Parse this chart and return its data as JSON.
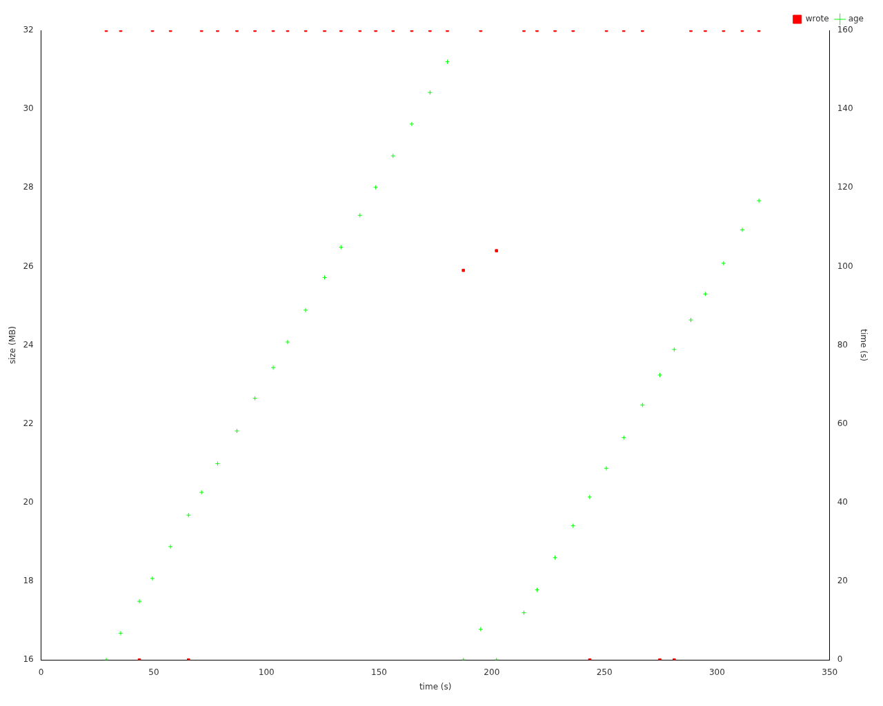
{
  "chart_data": {
    "type": "scatter",
    "xlabel": "time (s)",
    "ylabel": "size (MB)",
    "y2label": "time (s)",
    "xlim": [
      0,
      350
    ],
    "xticks": [
      0,
      50,
      100,
      150,
      200,
      250,
      300,
      350
    ],
    "ylim": [
      16,
      32
    ],
    "yticks": [
      16,
      18,
      20,
      22,
      24,
      26,
      28,
      30,
      32
    ],
    "y2lim": [
      0,
      160
    ],
    "y2ticks": [
      0,
      20,
      40,
      60,
      80,
      100,
      120,
      140,
      160
    ],
    "grid": false,
    "legend": "top right",
    "series": [
      {
        "name": "wrote",
        "color": "#ff0000",
        "marker": "square",
        "x": [
          28.9,
          35.3,
          43.6,
          49.4,
          57.4,
          65.4,
          71.2,
          78.3,
          86.9,
          94.9,
          103.0,
          109.4,
          117.4,
          125.8,
          133.1,
          141.5,
          148.5,
          156.2,
          164.5,
          172.6,
          180.3,
          187.4,
          195.1,
          202.1,
          214.3,
          220.1,
          228.1,
          236.1,
          243.5,
          250.9,
          258.6,
          266.9,
          274.6,
          281.0,
          288.4,
          294.8,
          302.9,
          311.2,
          318.6
        ],
        "values": [
          32,
          32,
          16,
          32,
          32,
          16,
          32,
          32,
          32,
          32,
          32,
          32,
          32,
          32,
          32,
          32,
          32,
          32,
          32,
          32,
          32,
          25.9,
          32,
          26.4,
          32,
          32,
          32,
          32,
          16,
          32,
          32,
          32,
          16,
          16,
          32,
          32,
          32,
          32,
          32
        ]
      },
      {
        "name": "age",
        "color": "#00ff00",
        "marker": "cross",
        "axis": "y2",
        "x": [
          28.9,
          35.3,
          43.6,
          49.4,
          57.4,
          65.4,
          71.2,
          78.3,
          86.9,
          94.9,
          103.0,
          109.4,
          117.4,
          125.8,
          133.1,
          141.5,
          148.5,
          156.2,
          164.5,
          172.6,
          180.3,
          187.4,
          195.1,
          202.1,
          214.3,
          220.1,
          228.1,
          236.1,
          243.5,
          250.9,
          258.6,
          266.9,
          274.6,
          281.0,
          288.4,
          294.8,
          302.9,
          311.2,
          318.6
        ],
        "values": [
          0,
          6.8,
          14.9,
          20.7,
          28.8,
          36.8,
          42.6,
          49.9,
          58.2,
          66.5,
          74.3,
          80.8,
          88.9,
          97.2,
          104.9,
          113.0,
          120.1,
          128.1,
          136.2,
          144.2,
          152.0,
          0,
          7.8,
          0,
          12.0,
          17.8,
          26.0,
          34.1,
          41.4,
          48.7,
          56.5,
          64.8,
          72.4,
          78.9,
          86.4,
          93.0,
          100.8,
          109.3,
          116.7
        ]
      }
    ]
  }
}
